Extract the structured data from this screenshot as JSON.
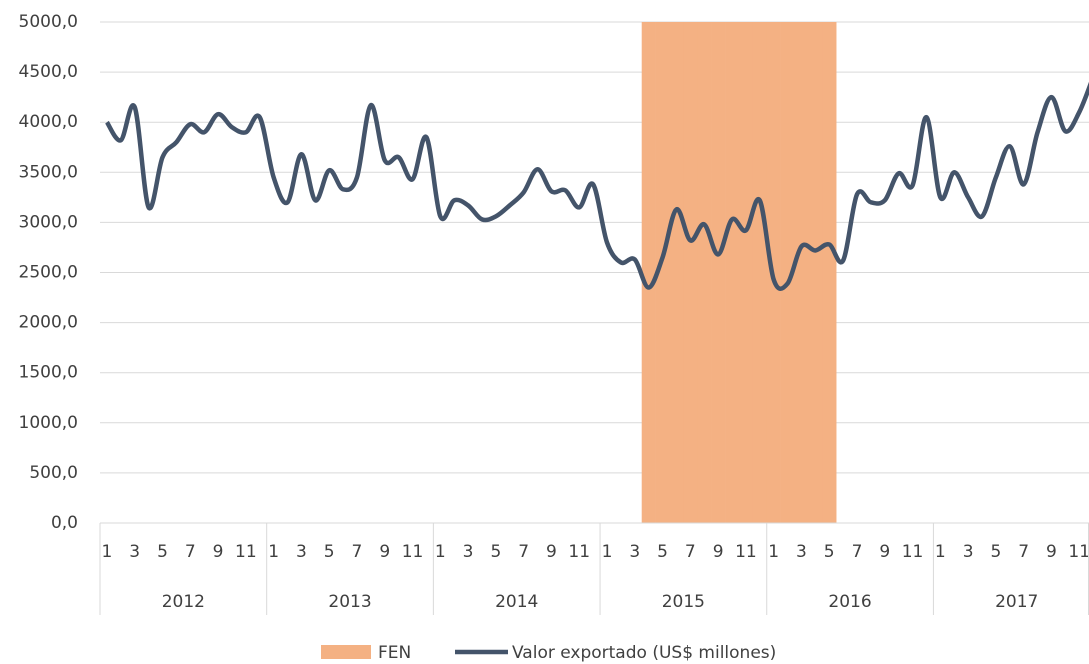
{
  "chart_data": {
    "type": "line",
    "categories": [
      "1",
      null,
      "3",
      null,
      "5",
      null,
      "7",
      null,
      "9",
      null,
      "11",
      null,
      "1",
      null,
      "3",
      null,
      "5",
      null,
      "7",
      null,
      "9",
      null,
      "11",
      null,
      "1",
      null,
      "3",
      null,
      "5",
      null,
      "7",
      null,
      "9",
      null,
      "11",
      null,
      "1",
      null,
      "3",
      null,
      "5",
      null,
      "7",
      null,
      "9",
      null,
      "11",
      null,
      "1",
      null,
      "3",
      null,
      "5",
      null,
      "7",
      null,
      "9",
      null,
      "11",
      null,
      "1",
      null,
      "3",
      null,
      "5",
      null,
      "7",
      null,
      "9",
      null,
      "11",
      null
    ],
    "groups": [
      "2012",
      "2013",
      "2014",
      "2015",
      "2016",
      "2017"
    ],
    "series": [
      {
        "name": "FEN",
        "type": "bar",
        "color": "#f4b183",
        "values": [
          null,
          null,
          null,
          null,
          null,
          null,
          null,
          null,
          null,
          null,
          null,
          null,
          null,
          null,
          null,
          null,
          null,
          null,
          null,
          null,
          null,
          null,
          null,
          null,
          null,
          null,
          null,
          null,
          null,
          null,
          null,
          null,
          null,
          null,
          null,
          null,
          null,
          null,
          null,
          5000,
          5000,
          5000,
          5000,
          5000,
          5000,
          5000,
          5000,
          5000,
          5000,
          5000,
          5000,
          5000,
          5000,
          null,
          null,
          null,
          null,
          null,
          null,
          null,
          null,
          null,
          null,
          null,
          null,
          null,
          null,
          null,
          null,
          null,
          null,
          null
        ]
      },
      {
        "name": "Valor exportado (US$ millones)",
        "type": "line",
        "color": "#44546a",
        "values": [
          4000,
          3820,
          4150,
          3150,
          3650,
          3800,
          3980,
          3900,
          4080,
          3950,
          3900,
          4050,
          3450,
          3200,
          3680,
          3220,
          3520,
          3330,
          3450,
          4170,
          3620,
          3650,
          3430,
          3850,
          3060,
          3220,
          3170,
          3030,
          3060,
          3170,
          3300,
          3530,
          3310,
          3320,
          3150,
          3380,
          2800,
          2600,
          2630,
          2350,
          2650,
          3130,
          2820,
          2980,
          2680,
          3030,
          2920,
          3220,
          2430,
          2390,
          2760,
          2720,
          2780,
          2620,
          3280,
          3200,
          3220,
          3490,
          3370,
          4050,
          3250,
          3500,
          3250,
          3060,
          3450,
          3760,
          3380,
          3900,
          4250,
          3910,
          4100,
          4450
        ]
      }
    ],
    "ylim": [
      0,
      5000
    ],
    "yticks": [
      {
        "value": 0,
        "label": "0,0"
      },
      {
        "value": 500,
        "label": "500,0"
      },
      {
        "value": 1000,
        "label": "1000,0"
      },
      {
        "value": 1500,
        "label": "1500,0"
      },
      {
        "value": 2000,
        "label": "2000,0"
      },
      {
        "value": 2500,
        "label": "2500,0"
      },
      {
        "value": 3000,
        "label": "3000,0"
      },
      {
        "value": 3500,
        "label": "3500,0"
      },
      {
        "value": 4000,
        "label": "4000,0"
      },
      {
        "value": 4500,
        "label": "4500,0"
      },
      {
        "value": 5000,
        "label": "5000,0"
      }
    ],
    "grid": true,
    "legend": "bottom"
  }
}
